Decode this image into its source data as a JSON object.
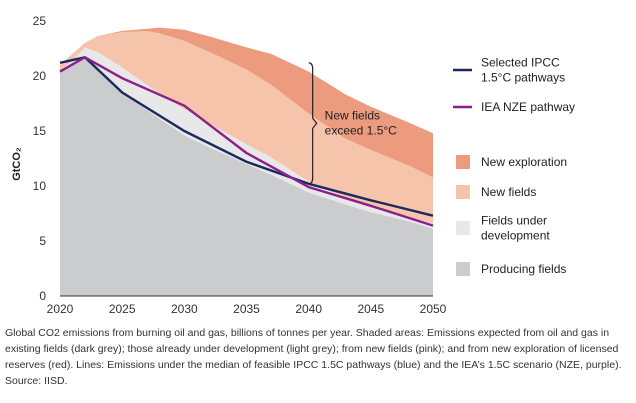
{
  "chart_data": {
    "type": "area",
    "ylabel": "GtCO₂",
    "xlim": [
      2020,
      2050
    ],
    "ylim": [
      0,
      25
    ],
    "x_ticks": [
      "2020",
      "2025",
      "2030",
      "2035",
      "2040",
      "2045",
      "2050"
    ],
    "y_ticks": [
      "0",
      "5",
      "10",
      "15",
      "20",
      "25"
    ],
    "x": [
      2020,
      2021,
      2022,
      2023,
      2025,
      2027,
      2028,
      2030,
      2032,
      2035,
      2037,
      2040,
      2043,
      2045,
      2048,
      2050
    ],
    "stacked_tops": [
      {
        "name": "Producing fields",
        "color": "#cbcccd",
        "values": [
          20.3,
          21.0,
          21.7,
          20.6,
          18.6,
          16.9,
          16.1,
          14.6,
          13.5,
          12.0,
          11.0,
          9.4,
          8.3,
          7.6,
          6.8,
          6.1
        ]
      },
      {
        "name": "Fields under development",
        "color": "#e8e8e8",
        "values": [
          20.5,
          21.4,
          22.6,
          22.2,
          20.8,
          19.2,
          18.4,
          17.0,
          15.7,
          13.8,
          12.6,
          10.4,
          8.9,
          8.1,
          7.2,
          6.6
        ]
      },
      {
        "name": "New fields",
        "color": "#f6c3ab",
        "values": [
          21.0,
          22.0,
          23.0,
          23.6,
          24.0,
          24.1,
          23.9,
          23.2,
          22.2,
          20.6,
          19.2,
          16.6,
          14.3,
          13.3,
          11.9,
          10.8
        ]
      },
      {
        "name": "New exploration",
        "color": "#ec9b7e",
        "values": [
          21.0,
          22.0,
          23.0,
          23.6,
          24.1,
          24.3,
          24.4,
          24.2,
          23.6,
          22.6,
          22.0,
          20.4,
          18.3,
          17.2,
          15.8,
          14.8
        ]
      }
    ],
    "lines": [
      {
        "name": "Selected IPCC 1.5°C pathways",
        "color": "#1b2a5c",
        "x": [
          2020,
          2022,
          2025,
          2030,
          2035,
          2040,
          2045,
          2050
        ],
        "values": [
          21.2,
          21.7,
          18.5,
          15.0,
          12.2,
          10.2,
          8.7,
          7.3
        ]
      },
      {
        "name": "IEA NZE pathway",
        "color": "#8c1f8c",
        "x": [
          2020,
          2022,
          2025,
          2030,
          2035,
          2040,
          2045,
          2050
        ],
        "values": [
          20.4,
          21.7,
          19.8,
          17.3,
          13.0,
          9.9,
          8.2,
          6.4
        ]
      }
    ],
    "annotation": {
      "lines": [
        "New fields",
        "exceed 1.5°C"
      ],
      "x": 2040,
      "from_y": 21.2,
      "to_y": 10.2
    },
    "legend": [
      {
        "label_lines": [
          "Selected IPCC",
          "1.5°C pathways"
        ],
        "kind": "line",
        "color": "#1b2a5c"
      },
      {
        "label_lines": [
          "IEA NZE pathway"
        ],
        "kind": "line",
        "color": "#8c1f8c"
      },
      {
        "label_lines": [
          "New exploration"
        ],
        "kind": "box",
        "color": "#ec9b7e"
      },
      {
        "label_lines": [
          "New fields"
        ],
        "kind": "box",
        "color": "#f6c3ab"
      },
      {
        "label_lines": [
          "Fields under",
          "development"
        ],
        "kind": "box",
        "color": "#e8e8e8"
      },
      {
        "label_lines": [
          "Producing fields"
        ],
        "kind": "box",
        "color": "#cbcccd"
      }
    ]
  },
  "caption": "Global CO2 emissions from burning oil and gas, billions of tonnes per year. Shaded areas: Emissions expected from oil and gas in existing fields (dark grey); those already under development (light grey); from new fields (pink); and from new exploration of licensed reserves (red). Lines: Emissions under the median of feasible IPCC 1.5C pathways (blue) and the IEA’s 1.5C scenario (NZE, purple). Source: IISD."
}
